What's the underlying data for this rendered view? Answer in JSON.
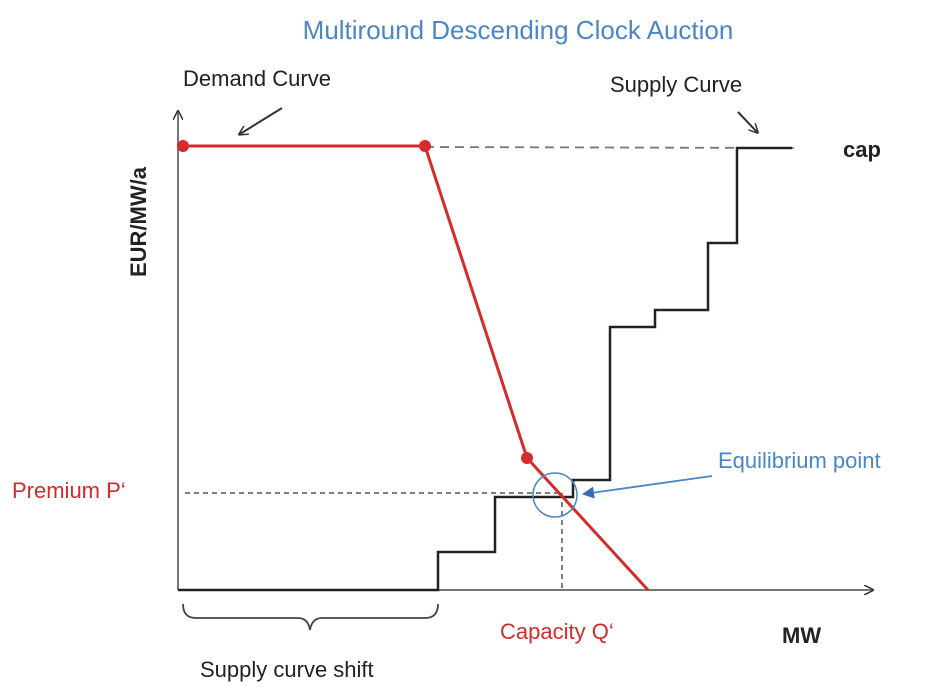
{
  "title": "Multiround Descending Clock Auction",
  "labels": {
    "demand_curve": "Demand Curve",
    "supply_curve": "Supply Curve",
    "cap": "cap",
    "y_axis": "EUR/MW/a",
    "x_axis": "MW",
    "premium": "Premium P‘",
    "equilibrium": "Equilibrium point",
    "capacity": "Capacity Q‘",
    "supply_shift": "Supply curve shift"
  }
}
